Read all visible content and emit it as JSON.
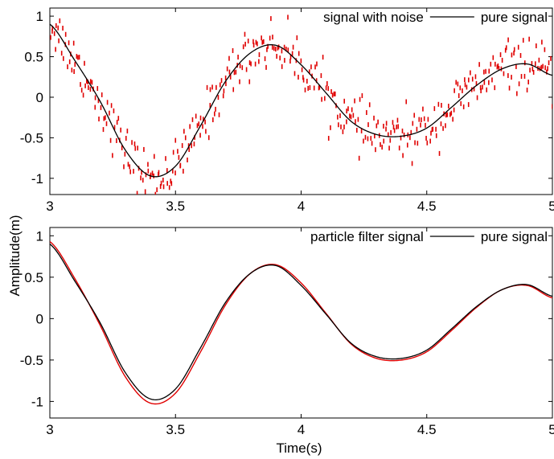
{
  "figure": {
    "ylabel": "Amplitude(m)",
    "xlabel": "Time(s)"
  },
  "chart_data": [
    {
      "type": "scatter",
      "panel": "top",
      "xlim": [
        3,
        5
      ],
      "ylim": [
        -1.2,
        1.1
      ],
      "xticks": [
        "3",
        "3.5",
        "4",
        "4.5",
        "5"
      ],
      "yticks": [
        "1",
        "0.5",
        "0",
        "-0.5",
        "-1"
      ],
      "grid": false,
      "legend_position": "top-right",
      "series": [
        {
          "name": "signal with noise",
          "style": "red dash markers",
          "color": "#e00000",
          "noise_std": 0.15
        },
        {
          "name": "pure signal",
          "style": "solid line",
          "color": "#000000"
        }
      ],
      "x": [
        3.0,
        3.1,
        3.2,
        3.3,
        3.4,
        3.5,
        3.6,
        3.7,
        3.8,
        3.9,
        4.0,
        4.1,
        4.2,
        4.3,
        4.4,
        4.5,
        4.6,
        4.7,
        4.8,
        4.9,
        5.0
      ],
      "y_pure": [
        0.9,
        0.45,
        -0.05,
        -0.65,
        -0.97,
        -0.85,
        -0.35,
        0.2,
        0.55,
        0.64,
        0.4,
        0.05,
        -0.3,
        -0.46,
        -0.48,
        -0.38,
        -0.12,
        0.15,
        0.35,
        0.41,
        0.27
      ]
    },
    {
      "type": "line",
      "panel": "bottom",
      "xlim": [
        3,
        5
      ],
      "ylim": [
        -1.2,
        1.1
      ],
      "xticks": [
        "3",
        "3.5",
        "4",
        "4.5",
        "5"
      ],
      "yticks": [
        "1",
        "0.5",
        "0",
        "-0.5",
        "-1"
      ],
      "grid": false,
      "legend_position": "top-right",
      "series": [
        {
          "name": "particle filter signal",
          "style": "solid line",
          "color": "#e00000"
        },
        {
          "name": "pure signal",
          "style": "solid line",
          "color": "#000000"
        }
      ],
      "x": [
        3.0,
        3.1,
        3.2,
        3.3,
        3.4,
        3.5,
        3.6,
        3.7,
        3.8,
        3.9,
        4.0,
        4.1,
        4.2,
        4.3,
        4.4,
        4.5,
        4.6,
        4.7,
        4.8,
        4.9,
        5.0
      ],
      "y_pure": [
        0.9,
        0.45,
        -0.05,
        -0.65,
        -0.97,
        -0.85,
        -0.35,
        0.2,
        0.55,
        0.64,
        0.4,
        0.05,
        -0.3,
        -0.46,
        -0.48,
        -0.38,
        -0.12,
        0.15,
        0.35,
        0.41,
        0.27
      ],
      "y_filter": [
        0.93,
        0.48,
        -0.08,
        -0.7,
        -1.02,
        -0.9,
        -0.4,
        0.17,
        0.55,
        0.65,
        0.43,
        0.06,
        -0.31,
        -0.48,
        -0.5,
        -0.4,
        -0.14,
        0.14,
        0.35,
        0.4,
        0.25
      ]
    }
  ]
}
